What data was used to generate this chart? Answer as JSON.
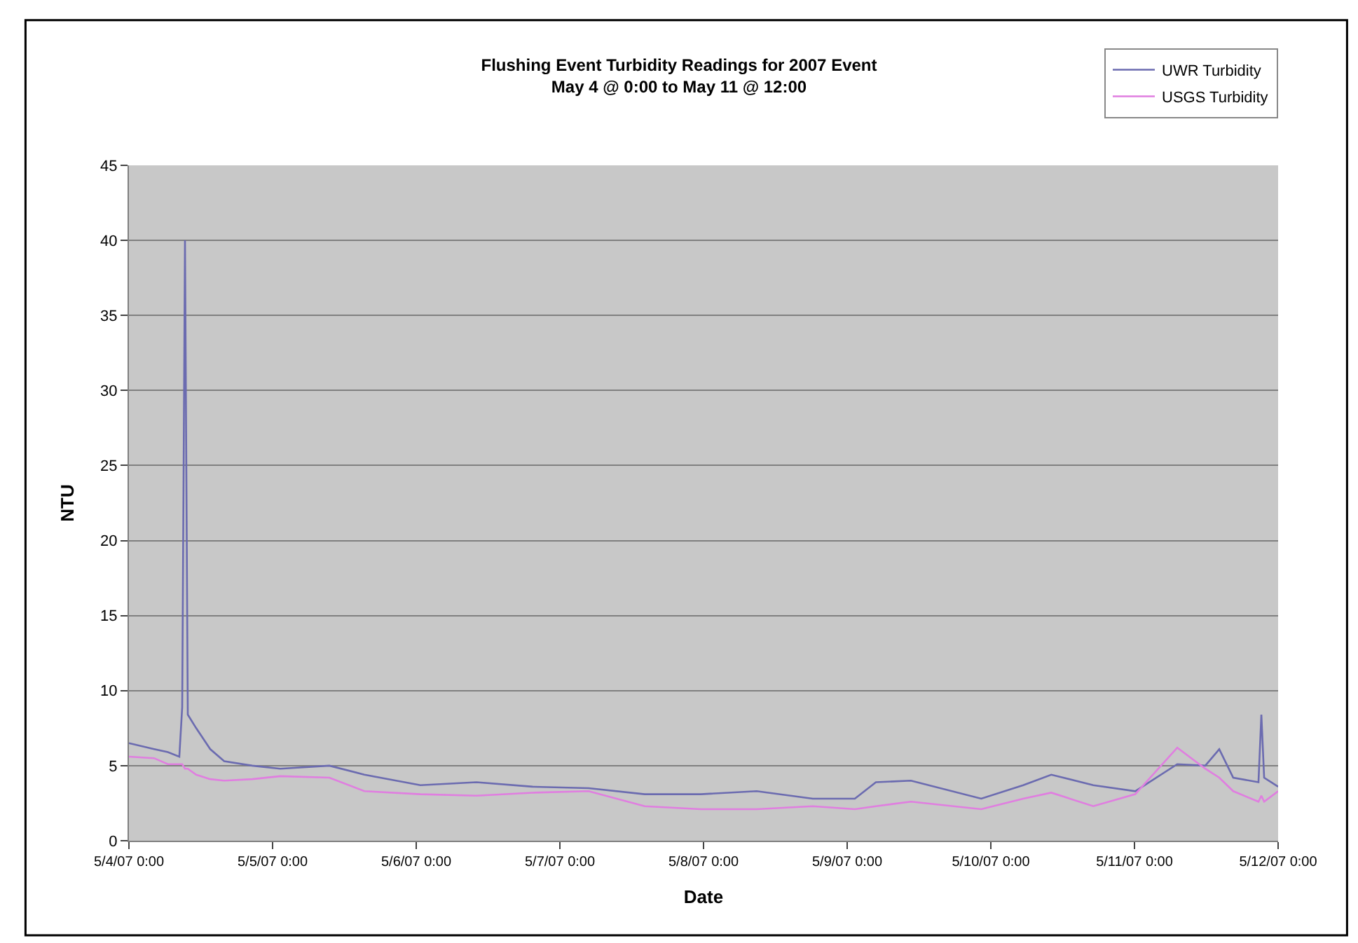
{
  "chart_data": {
    "type": "line",
    "title": "Flushing Event Turbidity Readings for 2007 Event",
    "subtitle": "May 4 @ 0:00 to May 11 @ 12:00",
    "xlabel": "Date",
    "ylabel": "NTU",
    "x": [
      "2007-05-04T00:00",
      "2007-05-04T04:12",
      "2007-05-04T06:30",
      "2007-05-04T08:25",
      "2007-05-04T08:54",
      "2007-05-04T09:22",
      "2007-05-04T09:50",
      "2007-05-04T11:14",
      "2007-05-04T13:35",
      "2007-05-04T15:55",
      "2007-05-04T20:36",
      "2007-05-05T01:17",
      "2007-05-05T09:29",
      "2007-05-05T15:20",
      "2007-05-06T00:42",
      "2007-05-06T10:04",
      "2007-05-06T19:26",
      "2007-05-07T04:48",
      "2007-05-07T14:10",
      "2007-05-07T23:32",
      "2007-05-08T08:53",
      "2007-05-08T18:15",
      "2007-05-09T01:17",
      "2007-05-09T04:48",
      "2007-05-09T10:39",
      "2007-05-09T22:24",
      "2007-05-10T05:25",
      "2007-05-10T10:06",
      "2007-05-10T17:07",
      "2007-05-11T00:08",
      "2007-05-11T07:09",
      "2007-05-11T11:50",
      "2007-05-11T14:10",
      "2007-05-11T16:30",
      "2007-05-11T20:43",
      "2007-05-11T21:12",
      "2007-05-11T21:40",
      "2007-05-12T00:00"
    ],
    "series": [
      {
        "name": "UWR Turbidity",
        "color": "#6b6bb0",
        "values": [
          6.5,
          6.1,
          5.9,
          5.6,
          8.9,
          40,
          8.4,
          7.5,
          6.1,
          5.3,
          5.0,
          4.8,
          5.0,
          4.4,
          3.7,
          3.9,
          3.6,
          3.5,
          3.1,
          3.1,
          3.3,
          2.8,
          2.8,
          3.9,
          4.0,
          2.8,
          3.7,
          4.4,
          3.7,
          3.3,
          5.1,
          5.0,
          6.1,
          4.2,
          3.9,
          8.4,
          4.2,
          3.6
        ]
      },
      {
        "name": "USGS Turbidity",
        "color": "#e07ee0",
        "values": [
          5.6,
          5.5,
          5.1,
          5.1,
          5.1,
          4.8,
          4.8,
          4.4,
          4.1,
          4.0,
          4.1,
          4.3,
          4.2,
          3.3,
          3.1,
          3.0,
          3.2,
          3.3,
          2.3,
          2.1,
          2.1,
          2.3,
          2.1,
          2.3,
          2.6,
          2.1,
          2.8,
          3.2,
          2.3,
          3.1,
          6.2,
          4.8,
          4.2,
          3.3,
          2.6,
          3.0,
          2.6,
          3.3
        ]
      }
    ],
    "xlim": [
      "2007-05-04T00:00",
      "2007-05-12T00:00"
    ],
    "xticks": [
      {
        "value": "2007-05-04T00:00",
        "label": "5/4/07 0:00"
      },
      {
        "value": "2007-05-05T00:00",
        "label": "5/5/07 0:00"
      },
      {
        "value": "2007-05-06T00:00",
        "label": "5/6/07 0:00"
      },
      {
        "value": "2007-05-07T00:00",
        "label": "5/7/07 0:00"
      },
      {
        "value": "2007-05-08T00:00",
        "label": "5/8/07 0:00"
      },
      {
        "value": "2007-05-09T00:00",
        "label": "5/9/07 0:00"
      },
      {
        "value": "2007-05-10T00:00",
        "label": "5/10/07 0:00"
      },
      {
        "value": "2007-05-11T00:00",
        "label": "5/11/07 0:00"
      },
      {
        "value": "2007-05-12T00:00",
        "label": "5/12/07 0:00"
      }
    ],
    "ylim": [
      0,
      45
    ],
    "yticks": [
      0,
      5,
      10,
      15,
      20,
      25,
      30,
      35,
      40,
      45
    ],
    "grid": "y",
    "legend": "top right",
    "marker": "none",
    "line_style": "solid"
  }
}
